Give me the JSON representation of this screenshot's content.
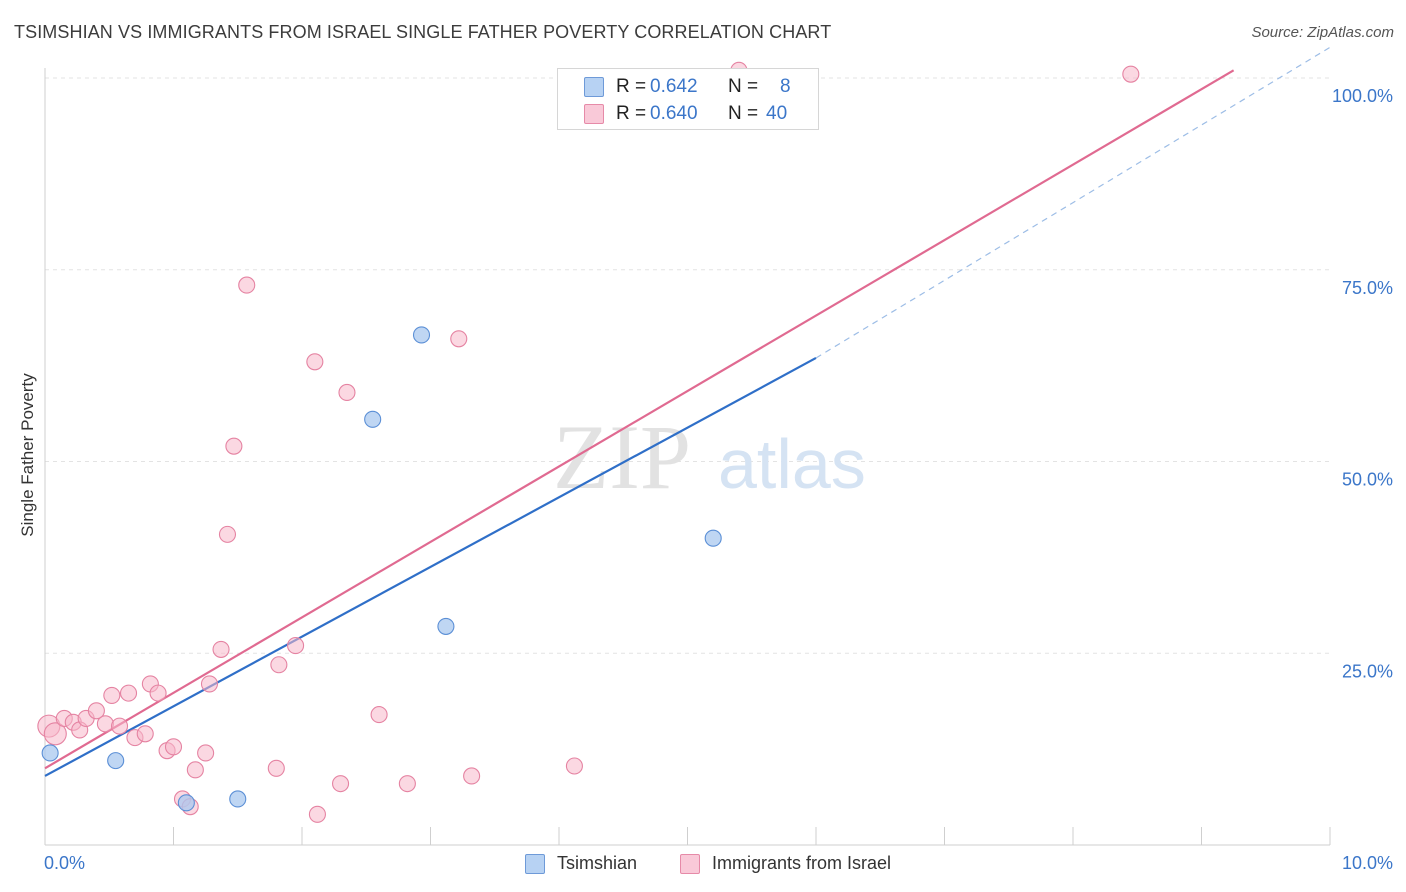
{
  "title": "TSIMSHIAN VS IMMIGRANTS FROM ISRAEL SINGLE FATHER POVERTY CORRELATION CHART",
  "source": "Source: ZipAtlas.com",
  "watermark": {
    "zip": "ZIP",
    "atlas": "atlas"
  },
  "legend_stats": [
    {
      "r_label": "R =",
      "r_value": "0.642",
      "n_label": "N =",
      "n_value": "8"
    },
    {
      "r_label": "R =",
      "r_value": "0.640",
      "n_label": "N =",
      "n_value": "40"
    }
  ],
  "chart_data": {
    "type": "scatter",
    "title": "TSIMSHIAN VS IMMIGRANTS FROM ISRAEL SINGLE FATHER POVERTY CORRELATION CHART",
    "xlabel": "",
    "ylabel": "Single Father Poverty",
    "xlim": [
      0,
      10
    ],
    "ylim": [
      0,
      100
    ],
    "x_tick_labels": [
      {
        "value": 0,
        "label": "0.0%"
      },
      {
        "value": 10,
        "label": "10.0%"
      }
    ],
    "y_tick_labels": [
      {
        "value": 25,
        "label": "25.0%"
      },
      {
        "value": 50,
        "label": "50.0%"
      },
      {
        "value": 75,
        "label": "75.0%"
      },
      {
        "value": 100,
        "label": "100.0%"
      }
    ],
    "grid": true,
    "legend_position": "bottom",
    "series": [
      {
        "name": "Tsimshian",
        "color": "#a9c8ef",
        "stroke": "#5b8fd6",
        "line_color": "#2f6fc8",
        "r": 0.642,
        "n": 8,
        "points": [
          {
            "x": 0.04,
            "y": 12.0
          },
          {
            "x": 0.55,
            "y": 11.0
          },
          {
            "x": 1.1,
            "y": 5.5
          },
          {
            "x": 1.5,
            "y": 6.0
          },
          {
            "x": 2.55,
            "y": 55.5
          },
          {
            "x": 2.93,
            "y": 66.5
          },
          {
            "x": 3.12,
            "y": 28.5
          },
          {
            "x": 5.2,
            "y": 40.0
          }
        ],
        "trend": {
          "x0": 0,
          "y0": 9.0,
          "x1": 6.0,
          "y1": 63.5,
          "dash_to_x": 10.0,
          "dash_to_y": 104.0
        }
      },
      {
        "name": "Immigrants from Israel",
        "color": "#f7b8cb",
        "stroke": "#e583a2",
        "line_color": "#e06a91",
        "r": 0.64,
        "n": 40,
        "points": [
          {
            "x": 0.03,
            "y": 15.5,
            "big": true
          },
          {
            "x": 0.08,
            "y": 14.5,
            "big": true
          },
          {
            "x": 0.15,
            "y": 16.5
          },
          {
            "x": 0.22,
            "y": 16.0
          },
          {
            "x": 0.27,
            "y": 15.0
          },
          {
            "x": 0.32,
            "y": 16.5
          },
          {
            "x": 0.4,
            "y": 17.5
          },
          {
            "x": 0.47,
            "y": 15.8
          },
          {
            "x": 0.52,
            "y": 19.5
          },
          {
            "x": 0.58,
            "y": 15.5
          },
          {
            "x": 0.65,
            "y": 19.8
          },
          {
            "x": 0.7,
            "y": 14.0
          },
          {
            "x": 0.78,
            "y": 14.5
          },
          {
            "x": 0.82,
            "y": 21.0
          },
          {
            "x": 0.88,
            "y": 19.8
          },
          {
            "x": 0.95,
            "y": 12.3
          },
          {
            "x": 1.0,
            "y": 12.8
          },
          {
            "x": 1.07,
            "y": 6.0
          },
          {
            "x": 1.13,
            "y": 5.0
          },
          {
            "x": 1.17,
            "y": 9.8
          },
          {
            "x": 1.25,
            "y": 12.0
          },
          {
            "x": 1.28,
            "y": 21.0
          },
          {
            "x": 1.37,
            "y": 25.5
          },
          {
            "x": 1.42,
            "y": 40.5
          },
          {
            "x": 1.47,
            "y": 52.0
          },
          {
            "x": 1.57,
            "y": 73.0
          },
          {
            "x": 1.8,
            "y": 10.0
          },
          {
            "x": 1.82,
            "y": 23.5
          },
          {
            "x": 1.95,
            "y": 26.0
          },
          {
            "x": 2.1,
            "y": 63.0
          },
          {
            "x": 2.12,
            "y": 4.0
          },
          {
            "x": 2.3,
            "y": 8.0
          },
          {
            "x": 2.35,
            "y": 59.0
          },
          {
            "x": 2.6,
            "y": 17.0
          },
          {
            "x": 2.82,
            "y": 8.0
          },
          {
            "x": 3.22,
            "y": 66.0
          },
          {
            "x": 3.32,
            "y": 9.0
          },
          {
            "x": 4.12,
            "y": 10.3
          },
          {
            "x": 5.4,
            "y": 101.0
          },
          {
            "x": 8.45,
            "y": 100.5
          }
        ],
        "trend": {
          "x0": 0,
          "y0": 10.0,
          "x1": 9.25,
          "y1": 101.0
        }
      }
    ]
  }
}
